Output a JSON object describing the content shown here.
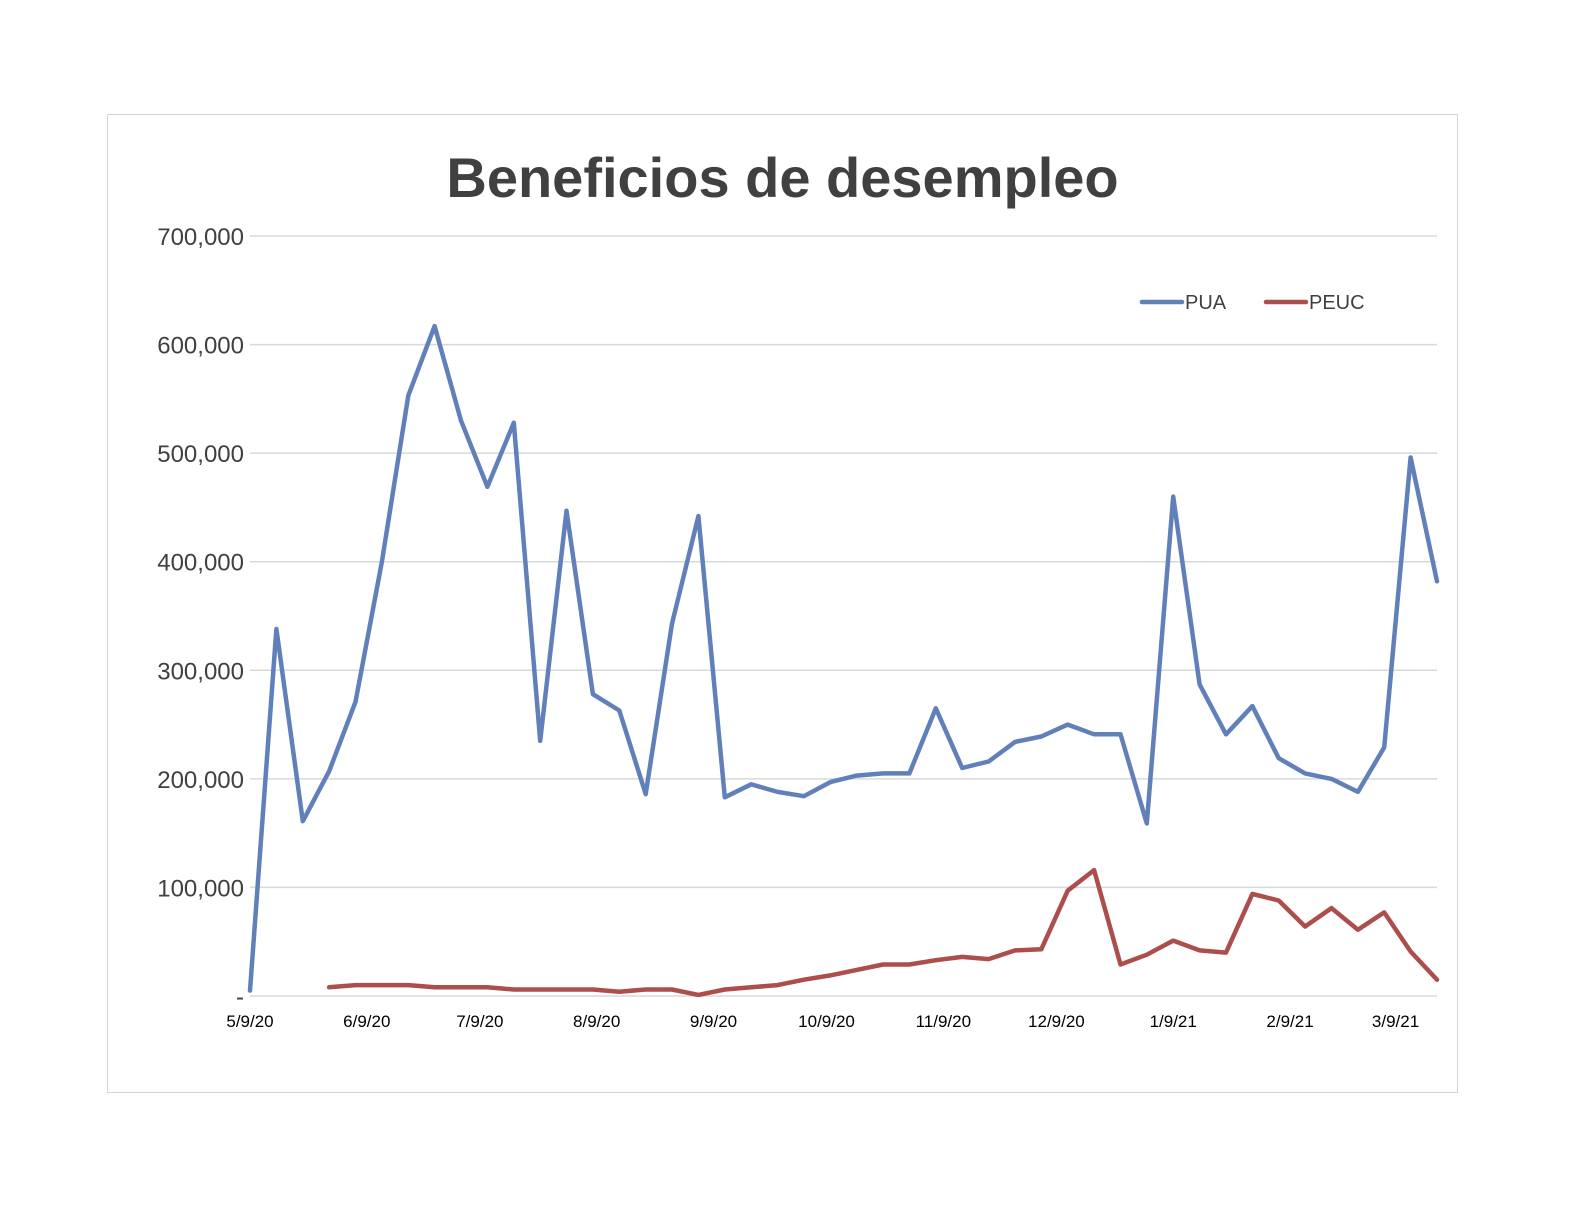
{
  "chart_data": {
    "type": "line",
    "title": "Beneficios de desempleo",
    "xlabel": "",
    "ylabel": "",
    "ylim": [
      0,
      700000
    ],
    "yticks": [
      0,
      100000,
      200000,
      300000,
      400000,
      500000,
      600000,
      700000
    ],
    "ytick_labels": [
      "-",
      "100,000",
      "200,000",
      "300,000",
      "400,000",
      "500,000",
      "600,000",
      "700,000"
    ],
    "x_tick_labels": [
      "5/9/20",
      "6/9/20",
      "7/9/20",
      "8/9/20",
      "9/9/20",
      "10/9/20",
      "11/9/20",
      "12/9/20",
      "1/9/21",
      "2/9/21",
      "3/9/21"
    ],
    "x_tick_dates": [
      "2020-05-09",
      "2020-06-09",
      "2020-07-09",
      "2020-08-09",
      "2020-09-09",
      "2020-10-09",
      "2020-11-09",
      "2020-12-09",
      "2021-01-09",
      "2021-02-09",
      "2021-03-09"
    ],
    "grid": true,
    "legend_position": "top-right",
    "series": [
      {
        "name": "PUA",
        "color": "#6180b9",
        "points": [
          [
            "2020-05-09",
            5000
          ],
          [
            "2020-05-16",
            338000
          ],
          [
            "2020-05-23",
            161000
          ],
          [
            "2020-05-30",
            207000
          ],
          [
            "2020-06-06",
            271000
          ],
          [
            "2020-06-13",
            400000
          ],
          [
            "2020-06-20",
            553000
          ],
          [
            "2020-06-27",
            617000
          ],
          [
            "2020-07-04",
            530000
          ],
          [
            "2020-07-11",
            469000
          ],
          [
            "2020-07-18",
            528000
          ],
          [
            "2020-07-25",
            235000
          ],
          [
            "2020-08-01",
            447000
          ],
          [
            "2020-08-08",
            278000
          ],
          [
            "2020-08-15",
            263000
          ],
          [
            "2020-08-22",
            186000
          ],
          [
            "2020-08-29",
            343000
          ],
          [
            "2020-09-05",
            442000
          ],
          [
            "2020-09-12",
            183000
          ],
          [
            "2020-09-19",
            195000
          ],
          [
            "2020-09-26",
            188000
          ],
          [
            "2020-10-03",
            184000
          ],
          [
            "2020-10-10",
            197000
          ],
          [
            "2020-10-17",
            203000
          ],
          [
            "2020-10-24",
            205000
          ],
          [
            "2020-10-31",
            205000
          ],
          [
            "2020-11-07",
            265000
          ],
          [
            "2020-11-14",
            210000
          ],
          [
            "2020-11-21",
            216000
          ],
          [
            "2020-11-28",
            234000
          ],
          [
            "2020-12-05",
            239000
          ],
          [
            "2020-12-12",
            250000
          ],
          [
            "2020-12-19",
            241000
          ],
          [
            "2020-12-26",
            241000
          ],
          [
            "2021-01-02",
            159000
          ],
          [
            "2021-01-09",
            460000
          ],
          [
            "2021-01-16",
            287000
          ],
          [
            "2021-01-23",
            241000
          ],
          [
            "2021-01-30",
            267000
          ],
          [
            "2021-02-06",
            219000
          ],
          [
            "2021-02-13",
            205000
          ],
          [
            "2021-02-20",
            200000
          ],
          [
            "2021-02-27",
            188000
          ],
          [
            "2021-03-06",
            229000
          ],
          [
            "2021-03-13",
            496000
          ],
          [
            "2021-03-20",
            382000
          ]
        ]
      },
      {
        "name": "PEUC",
        "color": "#ac4e4c",
        "points": [
          [
            "2020-05-30",
            8000
          ],
          [
            "2020-06-06",
            10000
          ],
          [
            "2020-06-13",
            10000
          ],
          [
            "2020-06-20",
            10000
          ],
          [
            "2020-06-27",
            8000
          ],
          [
            "2020-07-04",
            8000
          ],
          [
            "2020-07-11",
            8000
          ],
          [
            "2020-07-18",
            6000
          ],
          [
            "2020-07-25",
            6000
          ],
          [
            "2020-08-01",
            6000
          ],
          [
            "2020-08-08",
            6000
          ],
          [
            "2020-08-15",
            4000
          ],
          [
            "2020-08-22",
            6000
          ],
          [
            "2020-08-29",
            6000
          ],
          [
            "2020-09-05",
            1000
          ],
          [
            "2020-09-12",
            6000
          ],
          [
            "2020-09-19",
            8000
          ],
          [
            "2020-09-26",
            10000
          ],
          [
            "2020-10-03",
            15000
          ],
          [
            "2020-10-10",
            19000
          ],
          [
            "2020-10-17",
            24000
          ],
          [
            "2020-10-24",
            29000
          ],
          [
            "2020-10-31",
            29000
          ],
          [
            "2020-11-07",
            33000
          ],
          [
            "2020-11-14",
            36000
          ],
          [
            "2020-11-21",
            34000
          ],
          [
            "2020-11-28",
            42000
          ],
          [
            "2020-12-05",
            43000
          ],
          [
            "2020-12-12",
            97000
          ],
          [
            "2020-12-19",
            116000
          ],
          [
            "2020-12-26",
            29000
          ],
          [
            "2021-01-02",
            38000
          ],
          [
            "2021-01-09",
            51000
          ],
          [
            "2021-01-16",
            42000
          ],
          [
            "2021-01-23",
            40000
          ],
          [
            "2021-01-30",
            94000
          ],
          [
            "2021-02-06",
            88000
          ],
          [
            "2021-02-13",
            64000
          ],
          [
            "2021-02-20",
            81000
          ],
          [
            "2021-02-27",
            61000
          ],
          [
            "2021-03-06",
            77000
          ],
          [
            "2021-03-13",
            41000
          ],
          [
            "2021-03-20",
            15000
          ]
        ]
      }
    ]
  }
}
